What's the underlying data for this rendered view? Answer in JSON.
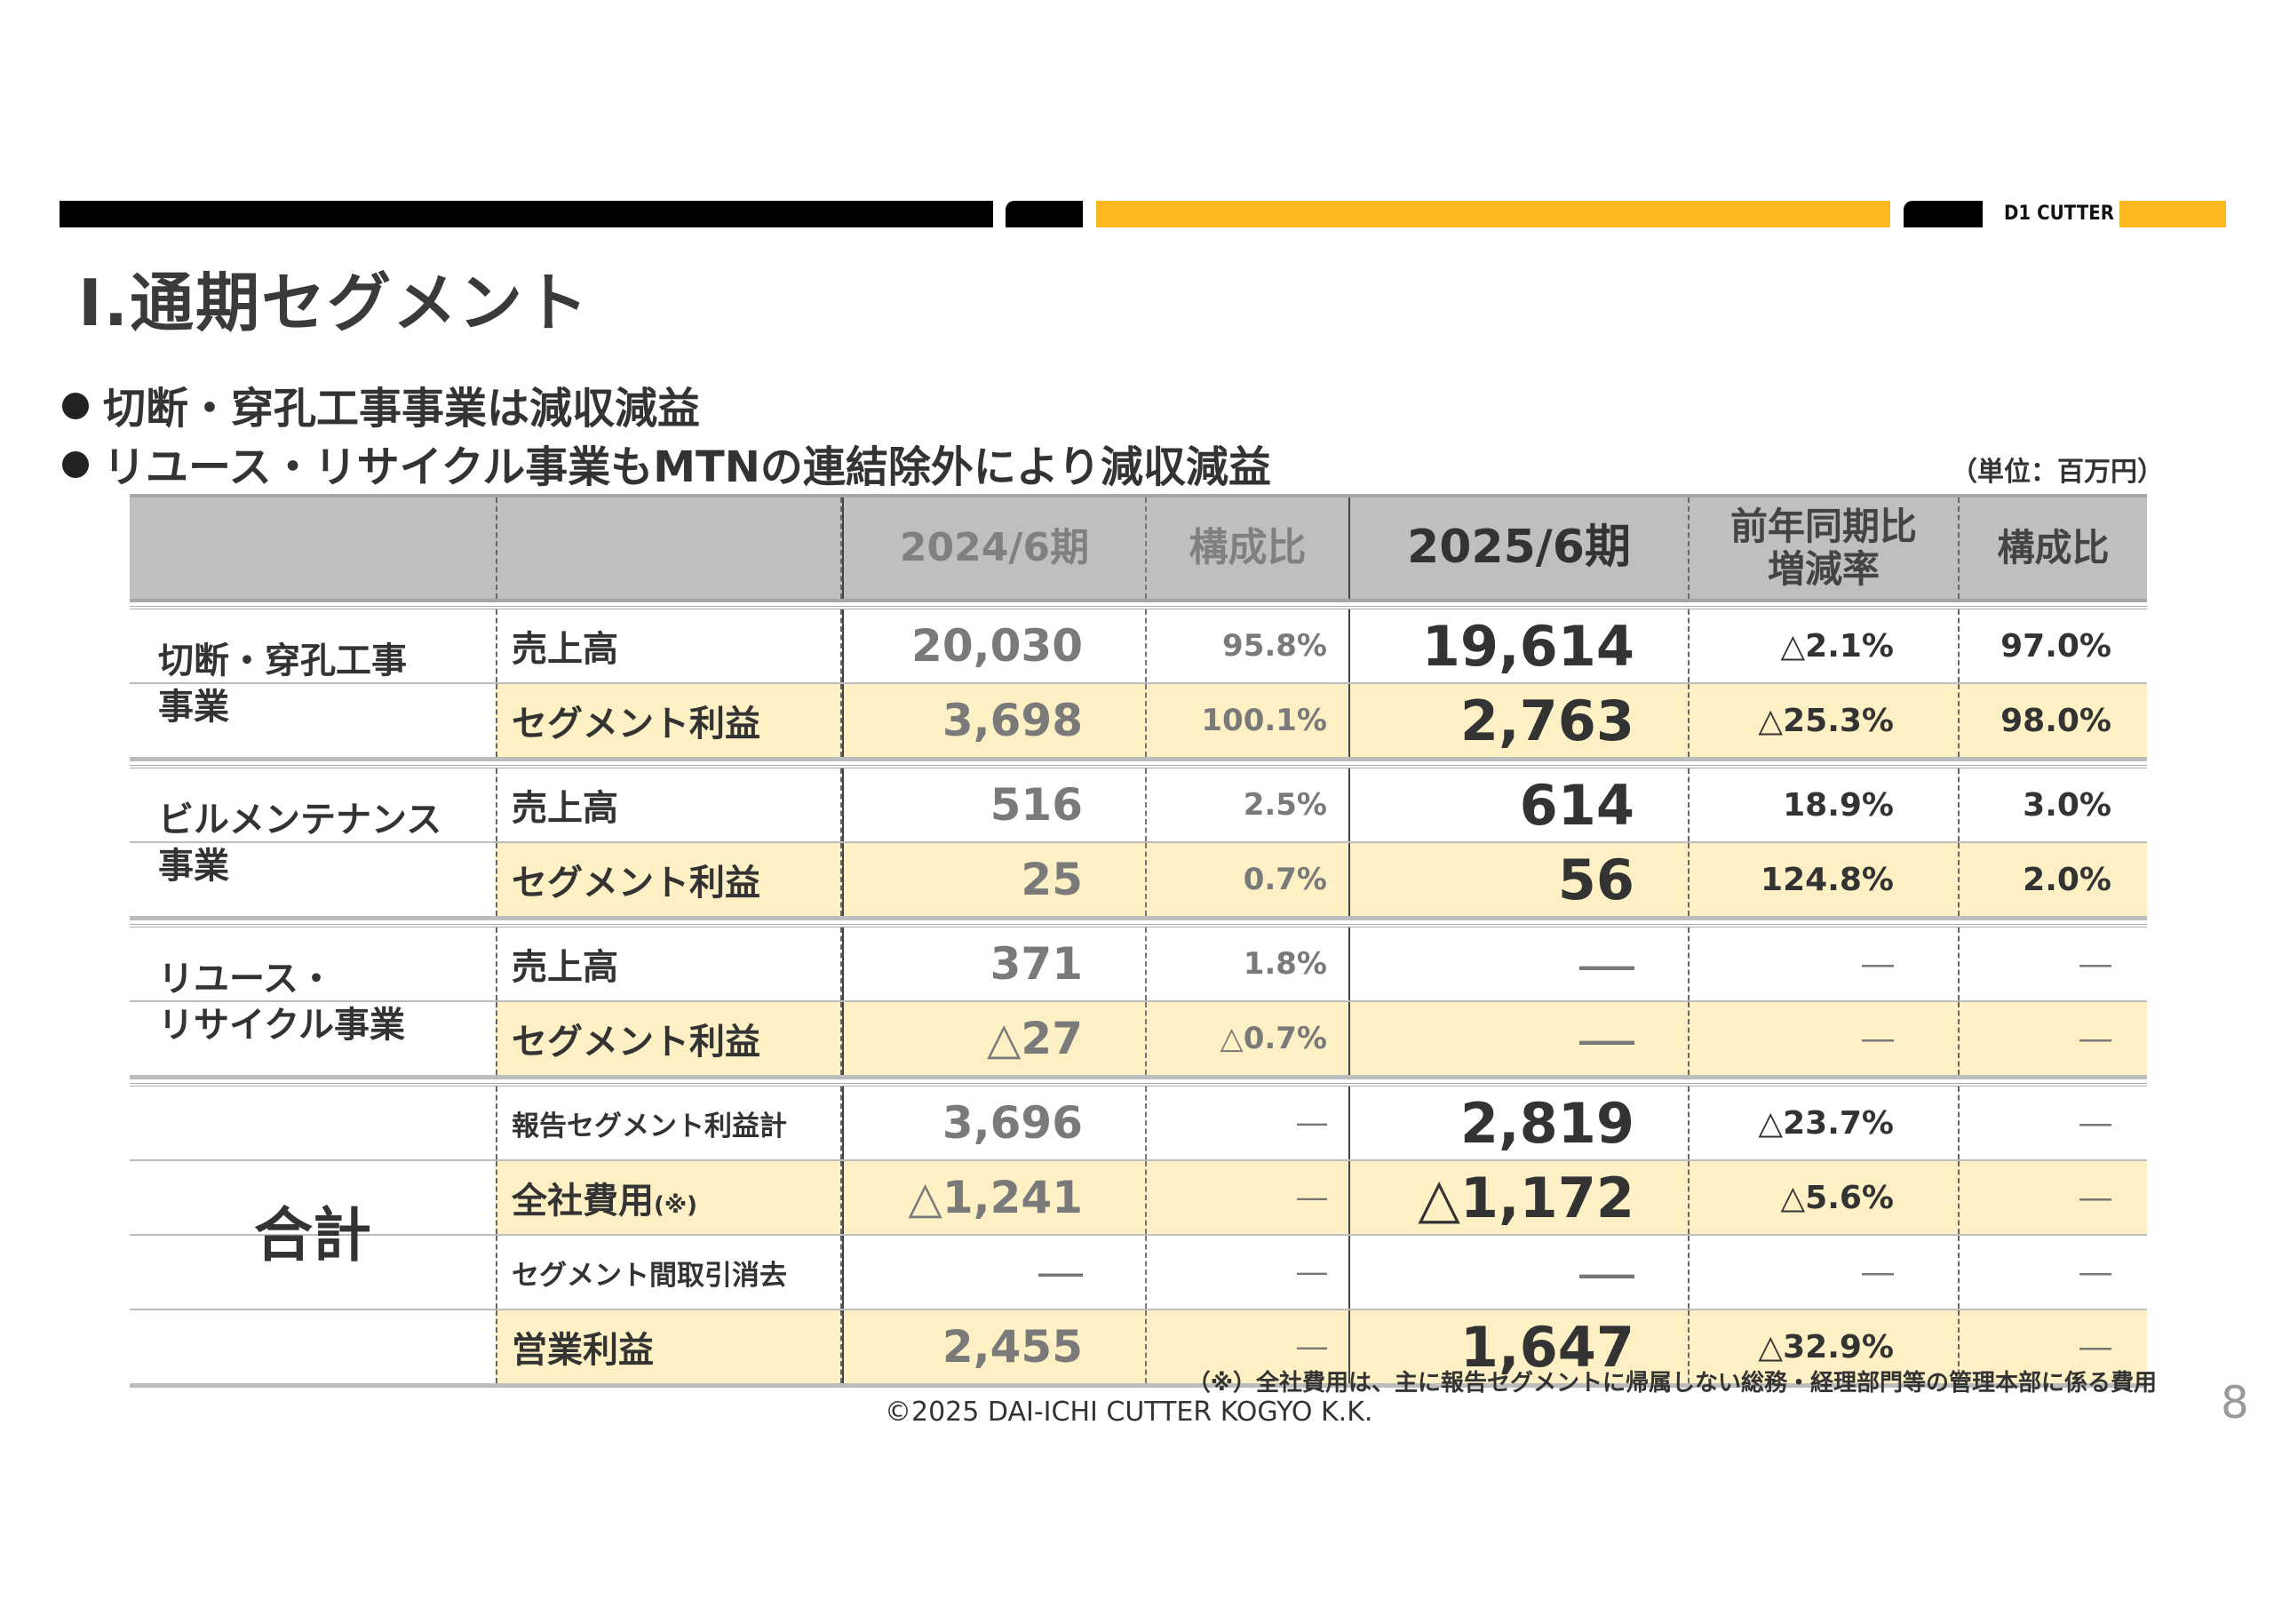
{
  "header": {
    "brand": "D1 CUTTER",
    "colors": {
      "black": "#000000",
      "yellow": "#fbb91f",
      "highlight_row": "#fdf0c4",
      "header_bg": "#bfbfbf"
    }
  },
  "title": "Ⅰ.通期セグメント",
  "bullets": [
    "切断・穿孔工事事業は減収減益",
    "リユース・リサイクル事業もMTNの連結除外により減収減益"
  ],
  "unit": "（単位：百万円）",
  "table": {
    "columns": [
      "",
      "",
      "2024/6期",
      "構成比",
      "2025/6期",
      "前年同期比\n増減率",
      "構成比"
    ],
    "sections": [
      {
        "label": "切断・穿孔工事\n事業",
        "big": false,
        "rows": [
          {
            "label": "売上高",
            "small": false,
            "highlight": false,
            "v24": "20,030",
            "r24": "95.8%",
            "v25": "19,614",
            "chg": "△2.1%",
            "r25": "97.0%"
          },
          {
            "label": "セグメント利益",
            "small": false,
            "highlight": true,
            "v24": "3,698",
            "r24": "100.1%",
            "v25": "2,763",
            "chg": "△25.3%",
            "r25": "98.0%"
          }
        ]
      },
      {
        "label": "ビルメンテナンス\n事業",
        "big": false,
        "rows": [
          {
            "label": "売上高",
            "small": false,
            "highlight": false,
            "v24": "516",
            "r24": "2.5%",
            "v25": "614",
            "chg": "18.9%",
            "r25": "3.0%"
          },
          {
            "label": "セグメント利益",
            "small": false,
            "highlight": true,
            "v24": "25",
            "r24": "0.7%",
            "v25": "56",
            "chg": "124.8%",
            "r25": "2.0%"
          }
        ]
      },
      {
        "label": "リユース・\nリサイクル事業",
        "big": false,
        "rows": [
          {
            "label": "売上高",
            "small": false,
            "highlight": false,
            "v24": "371",
            "r24": "1.8%",
            "v25": "―",
            "chg": "―",
            "r25": "―"
          },
          {
            "label": "セグメント利益",
            "small": false,
            "highlight": true,
            "v24": "△27",
            "r24": "△0.7%",
            "v25": "―",
            "chg": "―",
            "r25": "―"
          }
        ]
      },
      {
        "label": "合計",
        "big": true,
        "rows": [
          {
            "label": "報告セグメント利益計",
            "small": true,
            "highlight": false,
            "v24": "3,696",
            "r24": "―",
            "v25": "2,819",
            "chg": "△23.7%",
            "r25": "―"
          },
          {
            "label": "全社費用",
            "note": "(※)",
            "small": false,
            "highlight": true,
            "v24": "△1,241",
            "r24": "―",
            "v25": "△1,172",
            "chg": "△5.6%",
            "r25": "―"
          },
          {
            "label": "セグメント間取引消去",
            "small": true,
            "highlight": false,
            "v24": "―",
            "r24": "―",
            "v25": "―",
            "chg": "―",
            "r25": "―"
          },
          {
            "label": "営業利益",
            "small": false,
            "highlight": true,
            "v24": "2,455",
            "r24": "―",
            "v25": "1,647",
            "chg": "△32.9%",
            "r25": "―"
          }
        ]
      }
    ]
  },
  "footnote": "（※）全社費用は、主に報告セグメントに帰属しない総務・経理部門等の管理本部に係る費用",
  "copyright": "©2025 DAI-ICHI CUTTER KOGYO K.K.",
  "page_number": "8"
}
